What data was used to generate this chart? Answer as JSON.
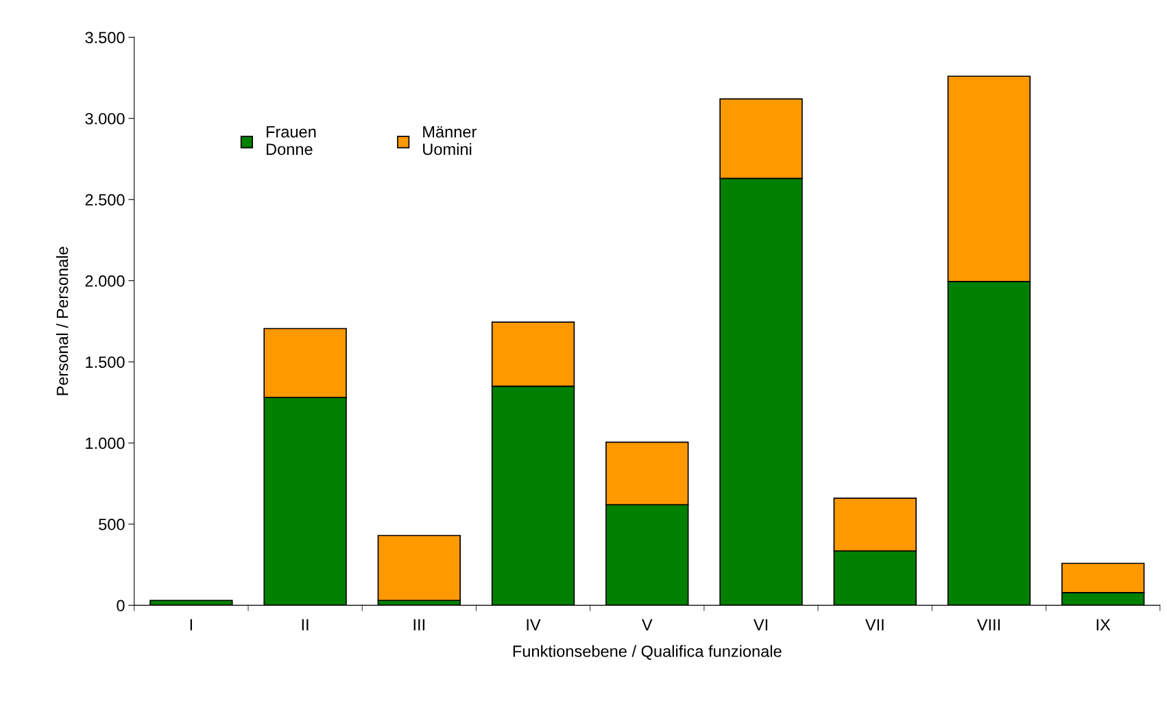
{
  "chart_data": {
    "type": "bar",
    "stacked": true,
    "xlabel": "Funktionsebene / Qualifica funzionale",
    "ylabel": "Personal / Personale",
    "categories": [
      "I",
      "II",
      "III",
      "IV",
      "V",
      "VI",
      "VII",
      "VIII",
      "IX"
    ],
    "series": [
      {
        "name": "Frauen\nDonne",
        "color": "#008000",
        "values": [
          30,
          1280,
          30,
          1350,
          620,
          2630,
          335,
          1995,
          78
        ]
      },
      {
        "name": "Männer\nUomini",
        "color": "#ff9900",
        "values": [
          null,
          425,
          400,
          395,
          385,
          490,
          325,
          1265,
          180
        ]
      }
    ],
    "ylim": [
      0,
      3500
    ],
    "yticks": [
      0,
      {
        "value": 500,
        "label": "500"
      },
      {
        "value": 1000,
        "label": "1.000"
      },
      {
        "value": 1500,
        "label": "1.500"
      },
      {
        "value": 2000,
        "label": "2.000"
      },
      {
        "value": 2500,
        "label": "2.500"
      },
      {
        "value": 3000,
        "label": "3.000"
      },
      {
        "value": 3500,
        "label": "3.500"
      }
    ],
    "legend": "top left",
    "grid": false
  }
}
